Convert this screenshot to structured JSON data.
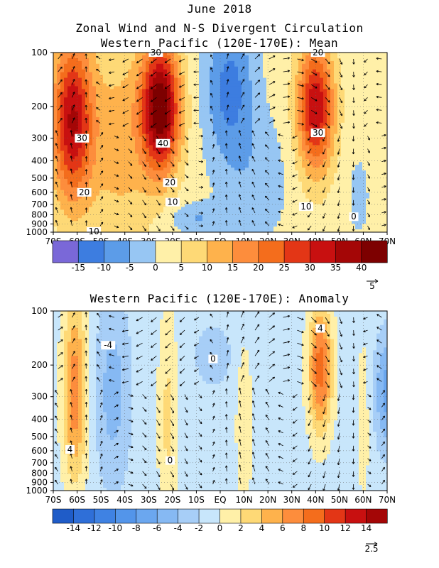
{
  "header": {
    "date": "June 2018",
    "title": "Zonal Wind and N-S Divergent Circulation",
    "subtitle_mean": "Western Pacific (120E-170E): Mean",
    "subtitle_anom": "Western Pacific (120E-170E): Anomaly"
  },
  "chart_data": [
    {
      "type": "heatmap",
      "title": "Western Pacific (120E-170E): Mean",
      "x_tick_labels": [
        "70S",
        "60S",
        "50S",
        "40S",
        "30S",
        "20S",
        "10S",
        "EQ",
        "10N",
        "20N",
        "30N",
        "40N",
        "50N",
        "60N",
        "70N"
      ],
      "x_range": [
        -70,
        70
      ],
      "y_tick_labels": [
        "100",
        "200",
        "300",
        "400",
        "500",
        "600",
        "700",
        "800",
        "900",
        "1000"
      ],
      "y_levels_hPa": [
        100,
        200,
        300,
        400,
        500,
        600,
        700,
        800,
        900,
        1000
      ],
      "y_scale": "log, pressure decreasing upward",
      "colorbar_ticks": [
        "-15",
        "-10",
        "-5",
        "0",
        "5",
        "10",
        "15",
        "20",
        "25",
        "30",
        "35",
        "40"
      ],
      "colorbar_bins": [
        -20,
        -15,
        -10,
        -5,
        0,
        5,
        10,
        15,
        20,
        25,
        30,
        35,
        40,
        45
      ],
      "colorbar_colors": [
        "#7a68d8",
        "#3d7de0",
        "#5c9ce8",
        "#97c6f3",
        "#fff0a8",
        "#fed976",
        "#feb24c",
        "#fd8d3c",
        "#f46d1c",
        "#e33616",
        "#c81010",
        "#a40606",
        "#7d0000"
      ],
      "contour_labels": [
        {
          "text": "30",
          "lat": -58,
          "p": 300
        },
        {
          "text": "20",
          "lat": -57,
          "p": 600
        },
        {
          "text": "10",
          "lat": -53,
          "p": 990
        },
        {
          "text": "30",
          "lat": -27,
          "p": 100
        },
        {
          "text": "40",
          "lat": -24,
          "p": 320
        },
        {
          "text": "20",
          "lat": -21,
          "p": 530
        },
        {
          "text": "10",
          "lat": -20,
          "p": 680
        },
        {
          "text": "20",
          "lat": 41,
          "p": 100
        },
        {
          "text": "30",
          "lat": 41,
          "p": 280
        },
        {
          "text": "10",
          "lat": 36,
          "p": 720
        },
        {
          "text": "0",
          "lat": 56,
          "p": 820
        }
      ],
      "vector_reference": "5",
      "features": [
        {
          "name": "SH westerly jet",
          "lat": -25,
          "p": 200,
          "max": 45
        },
        {
          "name": "SH high-latitude westerlies",
          "lat": -62,
          "p": 200,
          "max": 35
        },
        {
          "name": "NH westerly jet",
          "lat": 40,
          "p": 200,
          "max": 35
        },
        {
          "name": "Tropical easterlies",
          "lat": 4,
          "p": 150,
          "min": -10
        }
      ]
    },
    {
      "type": "heatmap",
      "title": "Western Pacific (120E-170E): Anomaly",
      "x_tick_labels": [
        "70S",
        "60S",
        "50S",
        "40S",
        "30S",
        "20S",
        "10S",
        "EQ",
        "10N",
        "20N",
        "30N",
        "40N",
        "50N",
        "60N",
        "70N"
      ],
      "x_range": [
        -70,
        70
      ],
      "y_tick_labels": [
        "100",
        "200",
        "300",
        "400",
        "500",
        "600",
        "700",
        "800",
        "900",
        "1000"
      ],
      "y_levels_hPa": [
        100,
        200,
        300,
        400,
        500,
        600,
        700,
        800,
        900,
        1000
      ],
      "y_scale": "log, pressure decreasing upward",
      "colorbar_ticks": [
        "-14",
        "-12",
        "-10",
        "-8",
        "-6",
        "-4",
        "-2",
        "0",
        "2",
        "4",
        "6",
        "8",
        "10",
        "12",
        "14"
      ],
      "colorbar_bins": [
        -16,
        -14,
        -12,
        -10,
        -8,
        -6,
        -4,
        -2,
        0,
        2,
        4,
        6,
        8,
        10,
        12,
        14,
        16
      ],
      "colorbar_colors": [
        "#1f5cc8",
        "#2f6fd8",
        "#3f82e3",
        "#5395ea",
        "#6ba7ef",
        "#86b9f3",
        "#a7cef7",
        "#c8e6fb",
        "#fff0a8",
        "#fed976",
        "#feb24c",
        "#fd8d3c",
        "#f46d1c",
        "#e33616",
        "#c81010",
        "#a40606"
      ],
      "contour_labels": [
        {
          "text": "-4",
          "lat": -47,
          "p": 155
        },
        {
          "text": "0",
          "lat": -3,
          "p": 185
        },
        {
          "text": "4",
          "lat": 42,
          "p": 125
        },
        {
          "text": "4",
          "lat": -63,
          "p": 590
        },
        {
          "text": "0",
          "lat": -21,
          "p": 680
        }
      ],
      "vector_reference": "2.5",
      "features": [
        {
          "name": "positive anomaly 60S",
          "lat": -61,
          "p": 280,
          "max": 8
        },
        {
          "name": "positive anomaly 42N",
          "lat": 42,
          "p": 210,
          "max": 10
        },
        {
          "name": "negative anomaly 70N",
          "lat": 70,
          "p": 280,
          "min": -6
        },
        {
          "name": "negative anomaly 45S",
          "lat": -45,
          "p": 300,
          "min": -4
        },
        {
          "name": "positive anomaly 22S",
          "lat": -22,
          "p": 400,
          "max": 2
        },
        {
          "name": "positive anomaly 10N",
          "lat": 10,
          "p": 400,
          "max": 2
        }
      ]
    }
  ]
}
